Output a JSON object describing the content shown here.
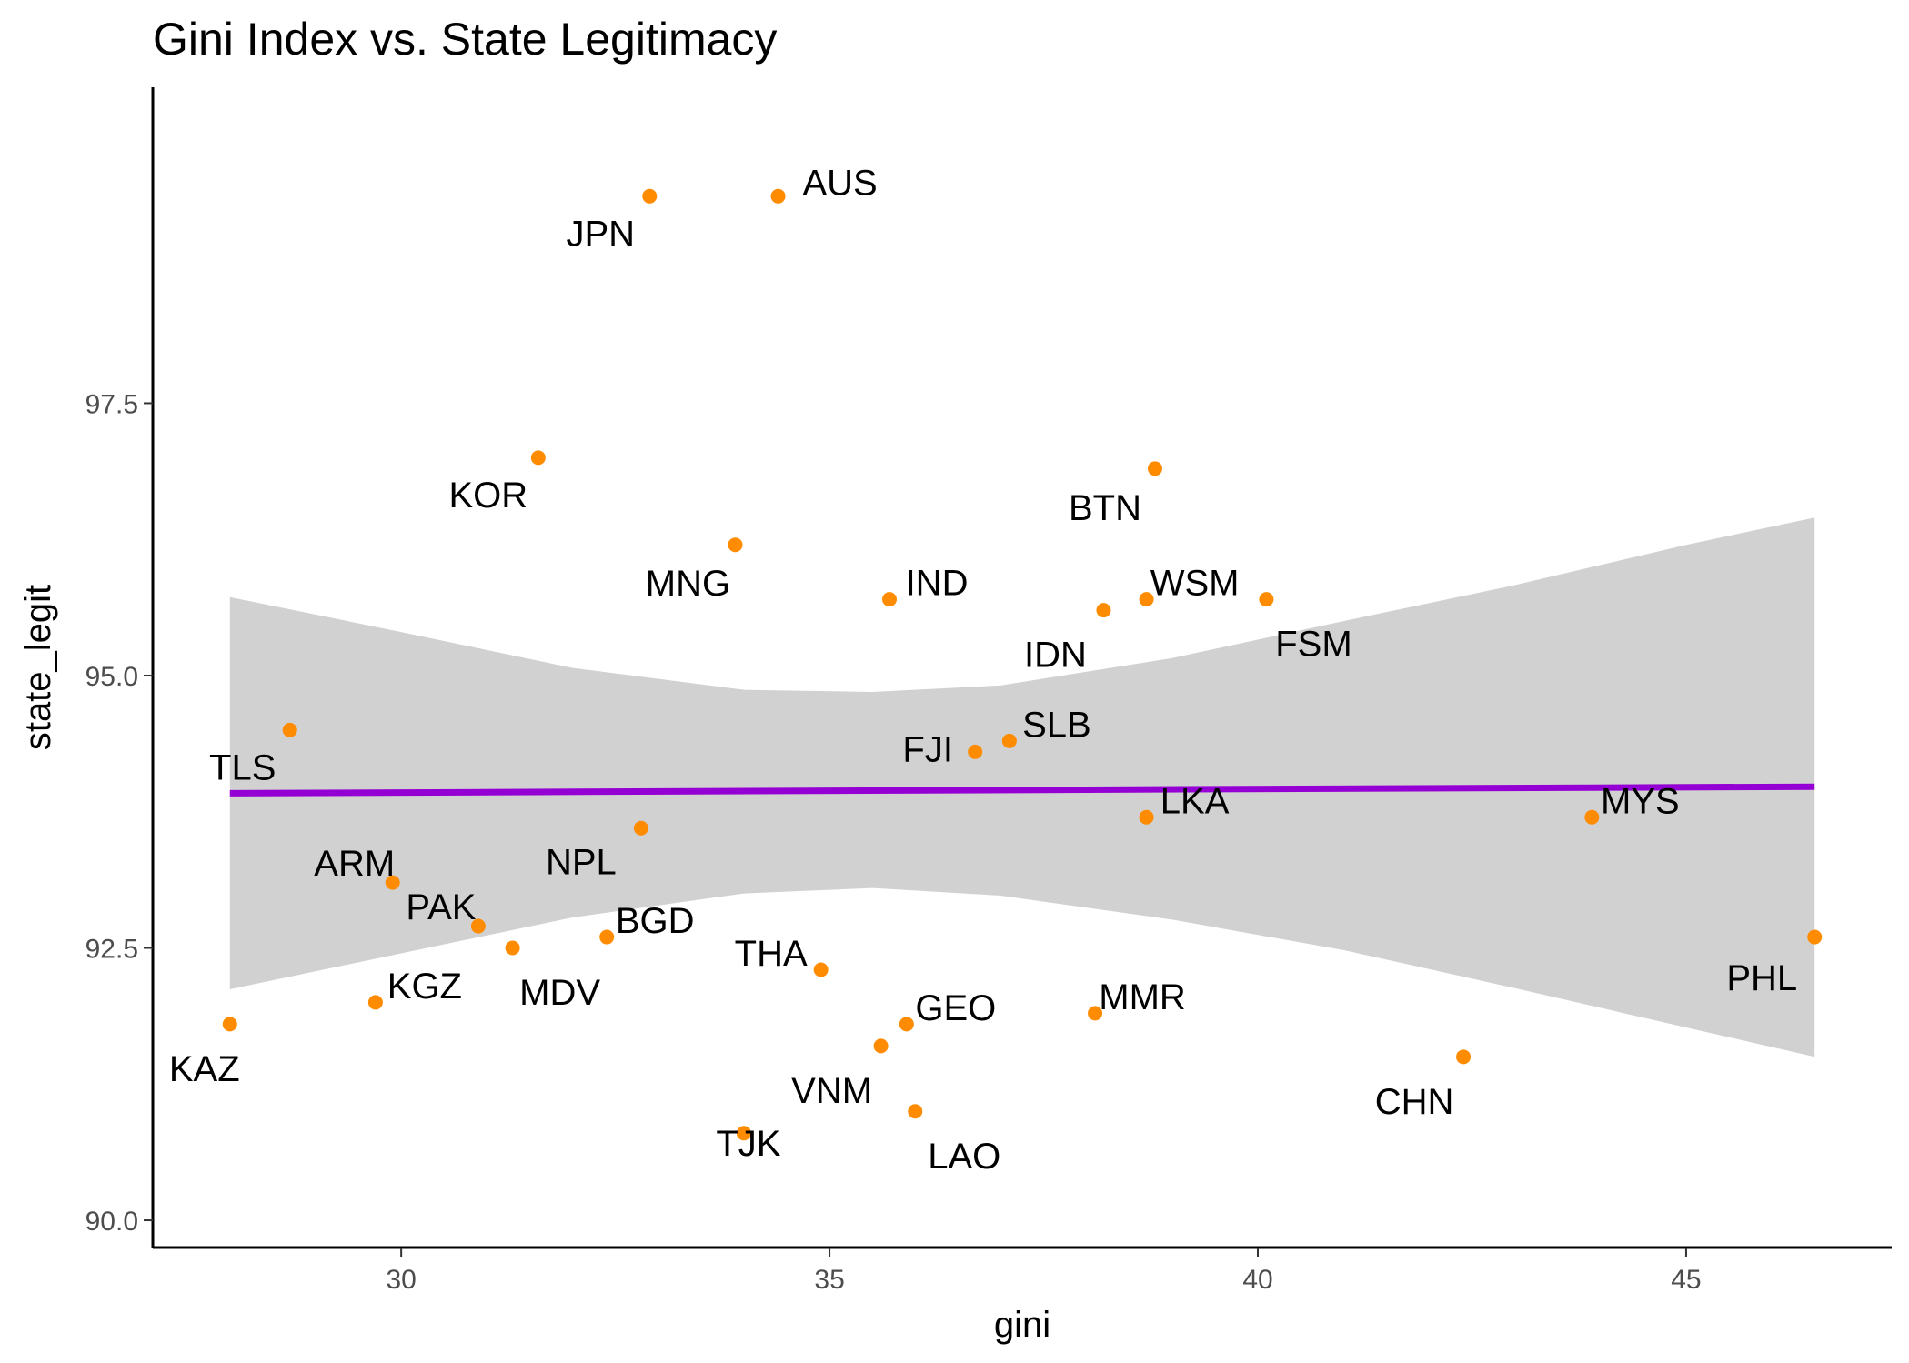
{
  "chart_data": {
    "type": "scatter",
    "title": "Gini Index vs. State Legitimacy",
    "xlabel": "gini",
    "ylabel": "state_legit",
    "xlim": [
      27.1,
      47.4
    ],
    "ylim": [
      89.75,
      100.4
    ],
    "x_ticks": [
      30,
      35,
      40,
      45
    ],
    "x_tick_labels": [
      "30",
      "35",
      "40",
      "45"
    ],
    "y_ticks": [
      90,
      92.5,
      95,
      97.5
    ],
    "y_tick_labels": [
      "90.0",
      "92.5",
      "95.0",
      "97.5"
    ],
    "grid": false,
    "point_color": "#ff8c00",
    "fit_line_color": "#9400d3",
    "ci_band_color": "#bebebe",
    "points": [
      {
        "label": "AUS",
        "x": 34.4,
        "y": 99.4
      },
      {
        "label": "JPN",
        "x": 32.9,
        "y": 99.4
      },
      {
        "label": "KOR",
        "x": 31.6,
        "y": 97.0
      },
      {
        "label": "BTN",
        "x": 38.8,
        "y": 96.9
      },
      {
        "label": "MNG",
        "x": 33.9,
        "y": 96.2
      },
      {
        "label": "IND",
        "x": 35.7,
        "y": 95.7
      },
      {
        "label": "WSM",
        "x": 38.7,
        "y": 95.7
      },
      {
        "label": "FSM",
        "x": 40.1,
        "y": 95.7
      },
      {
        "label": "IDN",
        "x": 38.2,
        "y": 95.6
      },
      {
        "label": "TLS",
        "x": 28.7,
        "y": 94.5
      },
      {
        "label": "SLB",
        "x": 37.1,
        "y": 94.4
      },
      {
        "label": "FJI",
        "x": 36.7,
        "y": 94.3
      },
      {
        "label": "LKA",
        "x": 38.7,
        "y": 93.7
      },
      {
        "label": "MYS",
        "x": 43.9,
        "y": 93.7
      },
      {
        "label": "NPL",
        "x": 32.8,
        "y": 93.6
      },
      {
        "label": "ARM",
        "x": 29.9,
        "y": 93.1
      },
      {
        "label": "PAK",
        "x": 30.9,
        "y": 92.7
      },
      {
        "label": "BGD",
        "x": 32.4,
        "y": 92.6
      },
      {
        "label": "PHL",
        "x": 46.5,
        "y": 92.6
      },
      {
        "label": "MDV",
        "x": 31.3,
        "y": 92.5
      },
      {
        "label": "THA",
        "x": 34.9,
        "y": 92.3
      },
      {
        "label": "KGZ",
        "x": 29.7,
        "y": 92.0
      },
      {
        "label": "MMR",
        "x": 38.1,
        "y": 91.9
      },
      {
        "label": "GEO",
        "x": 35.9,
        "y": 91.8
      },
      {
        "label": "KAZ",
        "x": 28.0,
        "y": 91.8
      },
      {
        "label": "VNM",
        "x": 35.6,
        "y": 91.6
      },
      {
        "label": "CHN",
        "x": 42.4,
        "y": 91.5
      },
      {
        "label": "LAO",
        "x": 36.0,
        "y": 91.0
      },
      {
        "label": "TJK",
        "x": 34.0,
        "y": 90.8
      }
    ],
    "fit_line": {
      "x": [
        28.0,
        46.5
      ],
      "y": [
        93.92,
        93.98
      ]
    },
    "ci_band": {
      "x": [
        28.0,
        30.0,
        32.0,
        34.0,
        35.5,
        37.0,
        39.0,
        41.0,
        43.0,
        45.0,
        46.5
      ],
      "lower": [
        92.12,
        92.45,
        92.78,
        93.0,
        93.05,
        92.98,
        92.76,
        92.48,
        92.13,
        91.77,
        91.5
      ],
      "upper": [
        95.72,
        95.4,
        95.07,
        94.87,
        94.85,
        94.91,
        95.16,
        95.5,
        95.83,
        96.2,
        96.45
      ]
    }
  }
}
